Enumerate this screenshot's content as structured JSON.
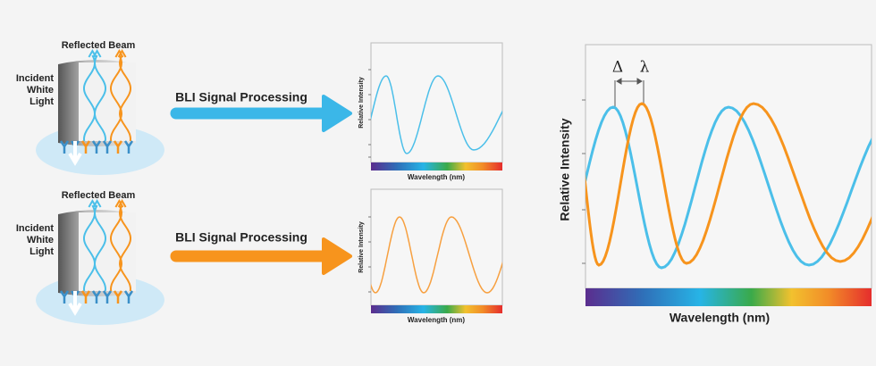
{
  "rows": [
    {
      "reflected_label": "Reflected Beam",
      "incident_label": [
        "Incident",
        "White",
        "Light"
      ],
      "arrow_label": "BLI Signal Processing",
      "plot": {
        "y_label": "Relative Intensity",
        "x_label": "Wavelength (nm)"
      }
    },
    {
      "reflected_label": "Reflected Beam",
      "incident_label": [
        "Incident",
        "White",
        "Light"
      ],
      "arrow_label": "BLI Signal Processing",
      "plot": {
        "y_label": "Relative Intensity",
        "x_label": "Wavelength (nm)"
      }
    }
  ],
  "combined_plot": {
    "y_label": "Relative Intensity",
    "x_label": "Wavelength (nm)",
    "shift_label": "Δ",
    "wavelength_label": "λ"
  }
}
